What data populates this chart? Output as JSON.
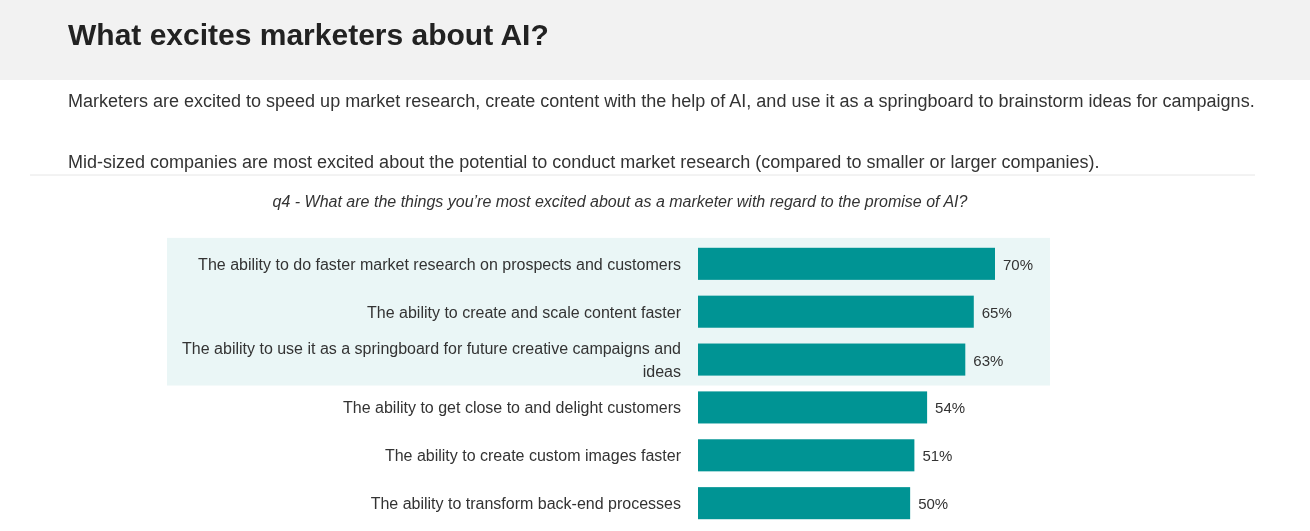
{
  "chart_data": {
    "type": "bar",
    "orientation": "horizontal",
    "title": "What excites marketers about AI?",
    "subtitle": "Marketers are excited to speed up market research, create content with the help of AI, and use it as a springboard to brainstorm ideas for campaigns.",
    "annotations": [
      "Mid-sized companies are most excited about the potential to conduct market research (compared to smaller or larger companies).",
      "q4 - What are the things you’re most excited about as a marketer with regard to the promise of AI?"
    ],
    "categories": [
      "The ability to do faster market research on prospects and customers",
      "The ability to create and scale content faster",
      "The ability to use it as a springboard for future creative campaigns and ideas",
      "The ability to get close to and delight customers",
      "The ability to create custom images faster",
      "The ability to transform back-end processes"
    ],
    "values": [
      70,
      65,
      63,
      54,
      51,
      50
    ],
    "value_labels": [
      "70%",
      "65%",
      "63%",
      "54%",
      "51%",
      "50%"
    ],
    "color": "#009494",
    "bands": [
      {
        "axis": "y",
        "from": "The ability to do faster market research on prospects and customers",
        "to": "The ability to use it as a springboard for future creative campaigns and ideas",
        "color": "#eaf6f6"
      }
    ]
  }
}
